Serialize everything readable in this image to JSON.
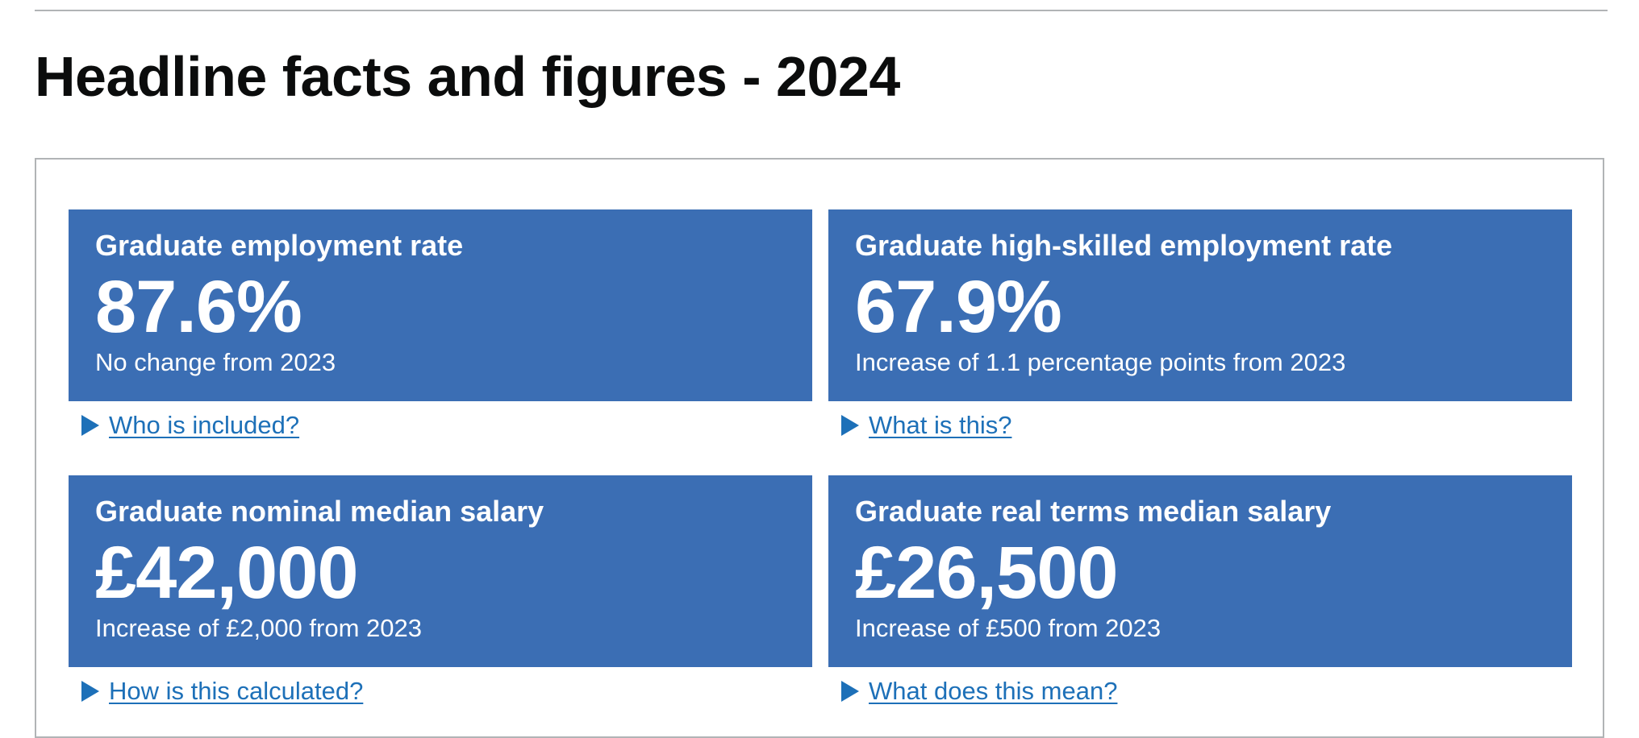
{
  "page": {
    "title": "Headline facts and figures - 2024"
  },
  "colors": {
    "tile_background": "#3b6eb4",
    "tile_text": "#ffffff",
    "link": "#1d70b8",
    "rule": "#b1b4b6"
  },
  "stats": [
    {
      "title": "Graduate employment rate",
      "value": "87.6%",
      "change": "No change from 2023",
      "details_label": "Who is included?",
      "details_icon": "triangle-right-icon"
    },
    {
      "title": "Graduate high-skilled employment rate",
      "value": "67.9%",
      "change": "Increase of 1.1 percentage points from 2023",
      "details_label": "What is this?",
      "details_icon": "triangle-right-icon"
    },
    {
      "title": "Graduate nominal median salary",
      "value": "£42,000",
      "change": "Increase of £2,000 from 2023",
      "details_label": "How is this calculated?",
      "details_icon": "triangle-right-icon"
    },
    {
      "title": "Graduate real terms median salary",
      "value": "£26,500",
      "change": "Increase of £500 from 2023",
      "details_label": "What does this mean?",
      "details_icon": "triangle-right-icon"
    }
  ]
}
